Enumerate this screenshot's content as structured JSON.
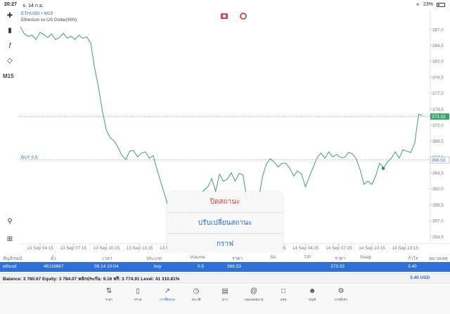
{
  "status": {
    "time": "20:27",
    "date": "จ. 14 ก.ย.",
    "battery": "23%"
  },
  "left_toolbar": {
    "timeframe": "M15"
  },
  "chart_header": {
    "symbol": "ETHUSD • M15",
    "subtitle": "Etherium vs US Dollar(600)"
  },
  "chart_data": {
    "type": "line",
    "price_ticks": [
      "387.0",
      "384.5",
      "382.0",
      "379.5",
      "377.0",
      "374.5",
      "372.0",
      "369.5",
      "367.0",
      "364.5",
      "362.0",
      "359.5",
      "357.0",
      "354.5"
    ],
    "time_ticks": [
      "13 Sep 04:15",
      "13 Sep 07:15",
      "13 Sep 10:15",
      "13 Sep 13:15",
      "13 Sep 16:15",
      "13 Sep 19:15",
      "13 Sep 22:15",
      "14 Sep 01:15",
      "14 Sep 04:15",
      "14 Sep 07:15",
      "14 Sep 10:15",
      "14 Sep 13:15"
    ],
    "ylim": [
      353.6,
      388.3
    ],
    "current_price": "373.33",
    "entry_price": "366.53",
    "entry_label": "BUY 0.5",
    "values": [
      387.4,
      386.3,
      385.9,
      386.1,
      385.4,
      386.5,
      386.2,
      385.7,
      386.3,
      385.4,
      385.7,
      386.4,
      385.6,
      385.9,
      385.4,
      386.1,
      385.6,
      385.8,
      384.9,
      381.0,
      377.9,
      374.2,
      371.2,
      370.0,
      369.5,
      368.5,
      367.2,
      366.6,
      367.9,
      368.0,
      367.0,
      367.6,
      367.8,
      366.8,
      367.2,
      365.0,
      363.0,
      361.0,
      359.0,
      357.0,
      356.5,
      355.7,
      356.6,
      357.3,
      359.0,
      361.2,
      360.7,
      361.8,
      362.3,
      363.6,
      361.6,
      364.3,
      363.2,
      363.5,
      364.5,
      363.2,
      364.4,
      364.2,
      360.5,
      361.1,
      359.3,
      360.3,
      363.9,
      365.9,
      366.7,
      366.2,
      365.4,
      366.0,
      366.0,
      365.2,
      364.0,
      364.8,
      364.3,
      362.3,
      363.9,
      365.4,
      366.9,
      367.6,
      366.8,
      367.8,
      367.0,
      367.4,
      366.9,
      366.9,
      367.7,
      367.5,
      366.7,
      365.0,
      362.7,
      363.2,
      362.7,
      364.0,
      366.0,
      365.3,
      366.2,
      366.8,
      367.8,
      366.8,
      368.1,
      367.9,
      367.7,
      369.2,
      373.7,
      373.5
    ]
  },
  "popup": {
    "close": "ปิดสถานะ",
    "modify": "ปรับเปลี่ยนสถานะ",
    "chart": "กราฟ"
  },
  "table": {
    "headers": [
      "สัญลักษณ์",
      "ตั๋ว",
      "เวลา",
      "ประเภท",
      "Volume",
      "ราคา",
      "S/L",
      "T/P",
      "ราคา",
      "Swap",
      "กำไร",
      "หมายเหตุ"
    ],
    "row": [
      "ethusd",
      "46116867",
      "09.14 10:04",
      "buy",
      "0.5",
      "366.53",
      "",
      "",
      "373.33",
      "",
      "3.40",
      ""
    ]
  },
  "balance": {
    "text": "Balance: 3 780.67 Equity: 3 784.07 หลักประกัน: 9.16 ฟรี: 3 774.91 Level: 41 310.81%",
    "profit": "3.40  USD"
  },
  "tabs": [
    {
      "label": "ราคา",
      "icon": "arrows-updown-icon"
    },
    {
      "label": "กราฟ",
      "icon": "candles-icon"
    },
    {
      "label": "การซื้อขาย",
      "icon": "trade-chart-icon",
      "active": true
    },
    {
      "label": "ประวัติ",
      "icon": "history-icon"
    },
    {
      "label": "ข่าว",
      "icon": "news-icon"
    },
    {
      "label": "กล่องจดหมาย",
      "icon": "mail-icon"
    },
    {
      "label": "แชท",
      "icon": "chat-icon"
    },
    {
      "label": "บัญชี",
      "icon": "account-icon"
    },
    {
      "label": "การตั้งค่า",
      "icon": "settings-icon"
    }
  ],
  "colors": {
    "line": "#3aa36b",
    "accent": "#2f6fd6",
    "close": "#e0392f"
  }
}
